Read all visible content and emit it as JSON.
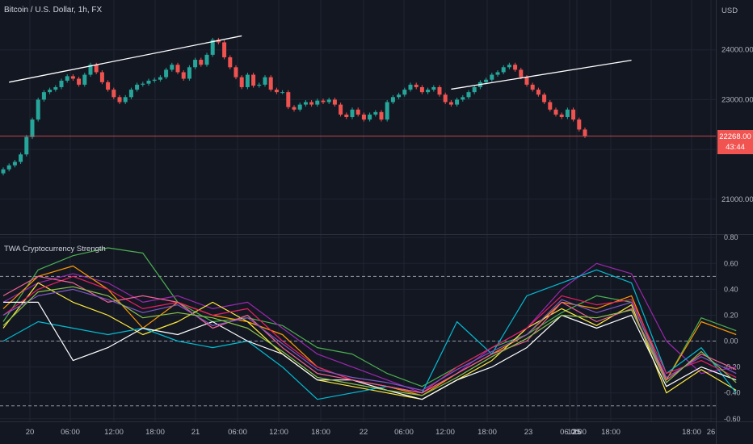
{
  "header": {
    "symbol_title": "Bitcoin / U.S. Dollar, 1h, FX",
    "currency": "USD"
  },
  "indicator": {
    "title": "TWA Cryptocurrency Strength"
  },
  "last_price": {
    "value": "22268.00",
    "countdown": "43:44",
    "color": "#f05350"
  },
  "colors": {
    "up": "#26a69a",
    "down": "#ef5350",
    "background": "#131722",
    "grid": "#1f2433"
  },
  "chart_data": [
    {
      "type": "candlestick",
      "ylim": [
        20300,
        25000
      ],
      "y_ticks": [
        21000,
        22000,
        23000,
        24000
      ],
      "y_tick_labels": [
        "21000.00",
        "",
        "23000.00",
        "24000.00"
      ],
      "x_ticks": [
        "20",
        "06:00",
        "12:00",
        "18:00",
        "21",
        "06:00",
        "12:00",
        "18:00",
        "22",
        "06:00",
        "12:00",
        "18:00",
        "23",
        "06:00",
        "12:00",
        "18:00",
        "25",
        "18:00",
        "26"
      ],
      "last_value": 22268,
      "close": [
        21600,
        21680,
        21750,
        21900,
        22250,
        22600,
        23000,
        23150,
        23200,
        23250,
        23380,
        23470,
        23420,
        23300,
        23500,
        23700,
        23550,
        23350,
        23200,
        23050,
        22950,
        23050,
        23200,
        23300,
        23320,
        23380,
        23400,
        23450,
        23600,
        23700,
        23550,
        23420,
        23650,
        23800,
        23700,
        23900,
        24200,
        24150,
        23850,
        23650,
        23450,
        23250,
        23500,
        23280,
        23300,
        23450,
        23200,
        23150,
        23150,
        22850,
        22800,
        22900,
        22950,
        22900,
        22980,
        22950,
        23000,
        22900,
        22700,
        22650,
        22800,
        22700,
        22600,
        22700,
        22750,
        22600,
        22950,
        23050,
        23100,
        23200,
        23300,
        23250,
        23150,
        23200,
        23250,
        23100,
        22950,
        22900,
        23000,
        23050,
        23150,
        23250,
        23350,
        23400,
        23500,
        23550,
        23650,
        23700,
        23600,
        23450,
        23300,
        23200,
        23100,
        22950,
        22800,
        22700,
        22650,
        22800,
        22600,
        22400,
        22270
      ],
      "price_lines": [
        {
          "from": [
            1,
            23350
          ],
          "to": [
            41,
            24280
          ]
        },
        {
          "from": [
            77,
            23210
          ],
          "to": [
            108,
            23790
          ]
        }
      ]
    },
    {
      "type": "line",
      "ylim": [
        -0.62,
        0.82
      ],
      "y_ticks": [
        0.8,
        0.6,
        0.4,
        0.2,
        0,
        -0.2,
        -0.4,
        -0.6
      ],
      "y_tick_labels": [
        "0.80",
        "0.60",
        "0.40",
        "0.20",
        "0.00",
        "-0.20",
        "-0.40",
        "-0.60"
      ],
      "reference_lines": [
        0.5,
        0,
        -0.5
      ],
      "x": [
        0,
        6,
        12,
        18,
        24,
        30,
        36,
        42,
        48,
        54,
        60,
        66,
        72,
        78,
        84,
        90,
        96,
        102,
        108,
        114,
        120,
        126
      ],
      "series": [
        {
          "color": "#4caf50",
          "values": [
            0.15,
            0.55,
            0.66,
            0.72,
            0.68,
            0.3,
            0.15,
            0.18,
            0.12,
            -0.05,
            -0.1,
            -0.25,
            -0.35,
            -0.2,
            -0.05,
            0.05,
            0.22,
            0.35,
            0.3,
            -0.3,
            0.18,
            0.08
          ]
        },
        {
          "color": "#9c27b0",
          "values": [
            0.3,
            0.45,
            0.52,
            0.45,
            0.3,
            0.35,
            0.25,
            0.3,
            0.1,
            -0.1,
            -0.2,
            -0.3,
            -0.4,
            -0.25,
            -0.05,
            0.1,
            0.4,
            0.6,
            0.52,
            0.0,
            -0.25,
            -0.2
          ]
        },
        {
          "color": "#ff9800",
          "values": [
            0.25,
            0.5,
            0.58,
            0.4,
            0.1,
            0.3,
            0.2,
            0.15,
            0.05,
            -0.2,
            -0.3,
            -0.35,
            -0.42,
            -0.25,
            -0.1,
            0.05,
            0.3,
            0.25,
            0.35,
            -0.3,
            0.15,
            0.05
          ]
        },
        {
          "color": "#ffeb3b",
          "values": [
            0.1,
            0.45,
            0.3,
            0.2,
            0.05,
            0.15,
            0.3,
            0.15,
            -0.1,
            -0.3,
            -0.35,
            -0.4,
            -0.45,
            -0.3,
            -0.15,
            0.1,
            0.25,
            0.12,
            0.28,
            -0.4,
            -0.22,
            -0.38
          ]
        },
        {
          "color": "#00bcd4",
          "values": [
            0.0,
            0.15,
            0.1,
            0.05,
            0.1,
            0.0,
            -0.05,
            0.0,
            -0.2,
            -0.45,
            -0.4,
            -0.35,
            -0.4,
            0.15,
            -0.1,
            0.35,
            0.45,
            0.55,
            0.45,
            -0.25,
            -0.05,
            -0.4
          ]
        },
        {
          "color": "#e91e63",
          "values": [
            0.2,
            0.4,
            0.5,
            0.4,
            0.25,
            0.3,
            0.2,
            0.25,
            0.0,
            -0.2,
            -0.3,
            -0.35,
            -0.4,
            -0.2,
            -0.05,
            0.1,
            0.35,
            0.28,
            0.32,
            -0.25,
            -0.15,
            -0.28
          ]
        },
        {
          "color": "#ffffff",
          "values": [
            0.3,
            0.3,
            -0.15,
            -0.05,
            0.1,
            0.05,
            0.15,
            0.0,
            -0.1,
            -0.3,
            -0.3,
            -0.38,
            -0.45,
            -0.3,
            -0.2,
            -0.05,
            0.2,
            0.1,
            0.2,
            -0.35,
            -0.2,
            -0.3
          ]
        },
        {
          "color": "#f06292",
          "values": [
            0.35,
            0.5,
            0.45,
            0.3,
            0.35,
            0.3,
            0.1,
            0.2,
            -0.05,
            -0.25,
            -0.3,
            -0.35,
            -0.4,
            -0.25,
            -0.1,
            0.0,
            0.3,
            0.15,
            0.25,
            -0.3,
            -0.1,
            -0.22
          ]
        },
        {
          "color": "#7e57c2",
          "values": [
            0.2,
            0.35,
            0.4,
            0.32,
            0.22,
            0.28,
            0.12,
            0.18,
            -0.02,
            -0.22,
            -0.28,
            -0.32,
            -0.38,
            -0.22,
            -0.08,
            0.05,
            0.32,
            0.22,
            0.3,
            -0.28,
            -0.12,
            -0.25
          ]
        },
        {
          "color": "#8bc34a",
          "values": [
            0.12,
            0.38,
            0.42,
            0.35,
            0.18,
            0.22,
            0.18,
            0.1,
            -0.08,
            -0.28,
            -0.33,
            -0.38,
            -0.42,
            -0.28,
            -0.12,
            0.02,
            0.2,
            0.18,
            0.24,
            -0.32,
            -0.08,
            -0.32
          ]
        }
      ]
    }
  ]
}
